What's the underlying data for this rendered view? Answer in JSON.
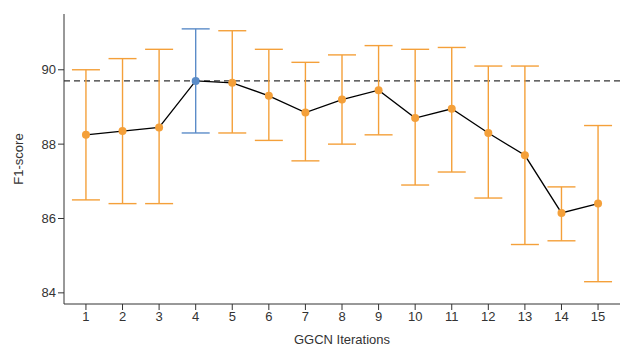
{
  "chart_data": {
    "type": "line",
    "x_label": "GGCN Iterations",
    "y_label": "F1-score",
    "x": [
      1,
      2,
      3,
      4,
      5,
      6,
      7,
      8,
      9,
      10,
      11,
      12,
      13,
      14,
      15
    ],
    "values": [
      88.25,
      88.35,
      88.45,
      89.7,
      89.65,
      89.3,
      88.85,
      89.2,
      89.45,
      88.7,
      88.95,
      88.3,
      87.7,
      86.15,
      86.4
    ],
    "error_low": [
      86.5,
      86.4,
      86.4,
      88.3,
      88.3,
      88.1,
      87.55,
      88.0,
      88.25,
      86.9,
      87.25,
      86.55,
      85.3,
      85.4,
      84.3
    ],
    "error_high": [
      90.0,
      90.3,
      90.55,
      91.1,
      91.05,
      90.55,
      90.2,
      90.4,
      90.65,
      90.55,
      90.6,
      90.1,
      90.1,
      86.85,
      88.5
    ],
    "color": "#000000",
    "colors": [
      "#f4a03a",
      "#f4a03a",
      "#f4a03a",
      "#5b8cc8",
      "#f4a03a",
      "#f4a03a",
      "#f4a03a",
      "#f4a03a",
      "#f4a03a",
      "#f4a03a",
      "#f4a03a",
      "#f4a03a",
      "#f4a03a",
      "#f4a03a",
      "#f4a03a"
    ],
    "marker": "circle",
    "reference_line": 89.7,
    "xlim": [
      0.4,
      15.6
    ],
    "xticks": [
      1,
      2,
      3,
      4,
      5,
      6,
      7,
      8,
      9,
      10,
      11,
      12,
      13,
      14,
      15
    ],
    "ylim": [
      83.7,
      91.5
    ],
    "yticks": [
      84,
      86,
      88,
      90
    ]
  }
}
